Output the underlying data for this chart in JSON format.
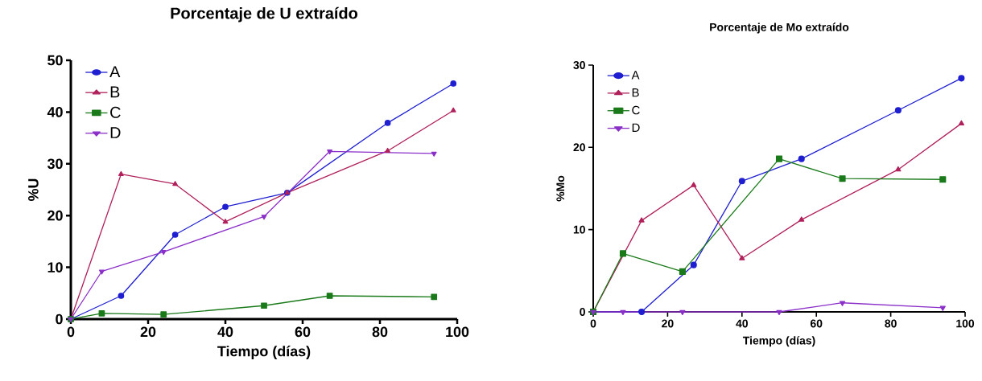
{
  "chart_data": [
    {
      "type": "line",
      "title": "Porcentaje de U extraído",
      "xlabel": "Tiempo (días)",
      "ylabel": "%U",
      "xlim": [
        0,
        100
      ],
      "ylim": [
        0,
        50
      ],
      "xticks": [
        0,
        20,
        40,
        60,
        80,
        100
      ],
      "yticks": [
        0,
        10,
        20,
        30,
        40,
        50
      ],
      "legend": "top left",
      "series": [
        {
          "name": "A",
          "color": "#1f1fd1",
          "marker": "circle",
          "x": [
            0,
            13,
            27,
            40,
            56,
            82,
            99
          ],
          "values": [
            0,
            4.5,
            16.3,
            21.7,
            24.4,
            37.9,
            45.5
          ]
        },
        {
          "name": "B",
          "color": "#b0205a",
          "marker": "triangle",
          "x": [
            0,
            13,
            27,
            40,
            56,
            82,
            99
          ],
          "values": [
            0,
            28.0,
            26.1,
            18.8,
            24.4,
            32.5,
            40.3
          ]
        },
        {
          "name": "C",
          "color": "#1a7a1a",
          "marker": "square",
          "x": [
            0,
            8,
            24,
            50,
            67,
            94
          ],
          "values": [
            0,
            1.1,
            0.9,
            2.6,
            4.5,
            4.3
          ]
        },
        {
          "name": "D",
          "color": "#8b2fc9",
          "marker": "triangle_down",
          "x": [
            0,
            8,
            24,
            50,
            67,
            94
          ],
          "values": [
            0,
            9.2,
            13.0,
            19.8,
            32.4,
            32.0
          ]
        }
      ]
    },
    {
      "type": "line",
      "title": "Porcentaje de Mo extraído",
      "xlabel": "Tiempo (días)",
      "ylabel": "%Mo",
      "xlim": [
        0,
        100
      ],
      "ylim": [
        0,
        30
      ],
      "xticks": [
        0,
        20,
        40,
        60,
        80,
        100
      ],
      "yticks": [
        0,
        10,
        20,
        30
      ],
      "legend": "top left",
      "series": [
        {
          "name": "A",
          "color": "#1f1fd1",
          "marker": "circle",
          "x": [
            0,
            13,
            27,
            40,
            56,
            82,
            99
          ],
          "values": [
            0,
            0,
            5.7,
            15.9,
            18.6,
            24.5,
            28.4
          ]
        },
        {
          "name": "B",
          "color": "#b0205a",
          "marker": "triangle",
          "x": [
            0,
            13,
            27,
            40,
            56,
            82,
            99
          ],
          "values": [
            0,
            11.1,
            15.4,
            6.5,
            11.2,
            17.3,
            22.9
          ]
        },
        {
          "name": "C",
          "color": "#1a7a1a",
          "marker": "square",
          "x": [
            0,
            8,
            24,
            50,
            67,
            94
          ],
          "values": [
            0,
            7.1,
            4.9,
            18.6,
            16.2,
            16.1
          ]
        },
        {
          "name": "D",
          "color": "#8b2fc9",
          "marker": "triangle_down",
          "x": [
            0,
            8,
            24,
            50,
            67,
            94
          ],
          "values": [
            0,
            0,
            0,
            0,
            1.1,
            0.5
          ]
        }
      ]
    }
  ]
}
